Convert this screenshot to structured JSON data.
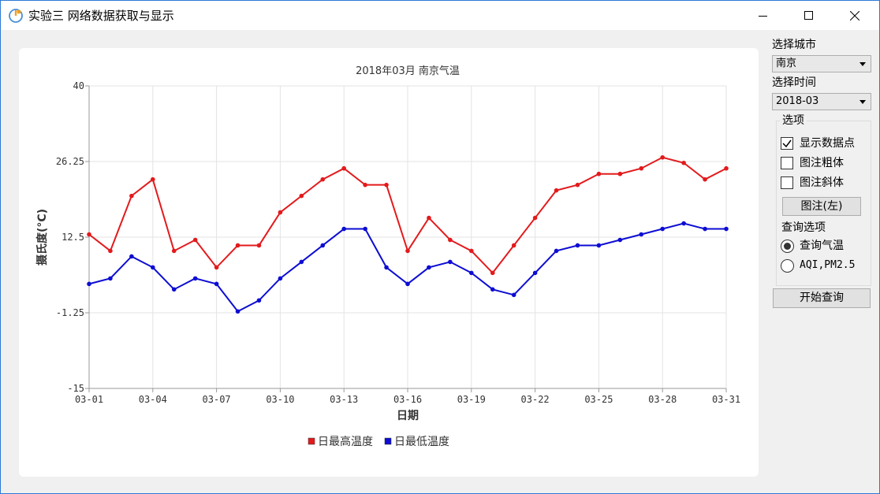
{
  "window": {
    "title": "实验三 网络数据获取与显示"
  },
  "sidebar": {
    "city_label": "选择城市",
    "city_value": "南京",
    "time_label": "选择时间",
    "time_value": "2018-03",
    "options_group": "选项",
    "show_points_label": "显示数据点",
    "show_points_checked": true,
    "legend_bold_label": "图注粗体",
    "legend_bold_checked": false,
    "legend_italic_label": "图注斜体",
    "legend_italic_checked": false,
    "legend_position_button": "图注(左)",
    "query_options_label": "查询选项",
    "query_temp_label": "查询气温",
    "query_temp_selected": true,
    "query_aqi_label": "AQI,PM2.5",
    "query_aqi_selected": false,
    "start_button": "开始查询"
  },
  "chart_data": {
    "type": "line",
    "title": "2018年03月 南京气温",
    "xlabel": "日期",
    "ylabel": "摄氏度(°C)",
    "ylim": [
      -15,
      40
    ],
    "y_ticks": [
      "40",
      "26.25",
      "12.5",
      "-1.25",
      "-15"
    ],
    "x_ticks": [
      "03-01",
      "03-04",
      "03-07",
      "03-10",
      "03-13",
      "03-16",
      "03-19",
      "03-22",
      "03-25",
      "03-28",
      "03-31"
    ],
    "grid": true,
    "legend_position": "bottom",
    "x": [
      "03-01",
      "03-02",
      "03-03",
      "03-04",
      "03-05",
      "03-06",
      "03-07",
      "03-08",
      "03-09",
      "03-10",
      "03-11",
      "03-12",
      "03-13",
      "03-14",
      "03-15",
      "03-16",
      "03-17",
      "03-18",
      "03-19",
      "03-20",
      "03-21",
      "03-22",
      "03-23",
      "03-24",
      "03-25",
      "03-26",
      "03-27",
      "03-28",
      "03-29",
      "03-30",
      "03-31"
    ],
    "series": [
      {
        "name": "日最高温度",
        "color": "#e31a1c",
        "values": [
          13,
          10,
          20,
          23,
          10,
          12,
          7,
          11,
          11,
          17,
          20,
          23,
          25,
          22,
          22,
          10,
          16,
          12,
          10,
          6,
          11,
          16,
          21,
          22,
          24,
          24,
          25,
          27,
          26,
          23,
          25
        ]
      },
      {
        "name": "日最低温度",
        "color": "#0d0dd3",
        "values": [
          4,
          5,
          9,
          7,
          3,
          5,
          4,
          -1,
          1,
          5,
          8,
          11,
          14,
          14,
          7,
          4,
          7,
          8,
          6,
          3,
          2,
          6,
          10,
          11,
          11,
          12,
          13,
          14,
          15,
          14,
          14
        ]
      }
    ]
  }
}
